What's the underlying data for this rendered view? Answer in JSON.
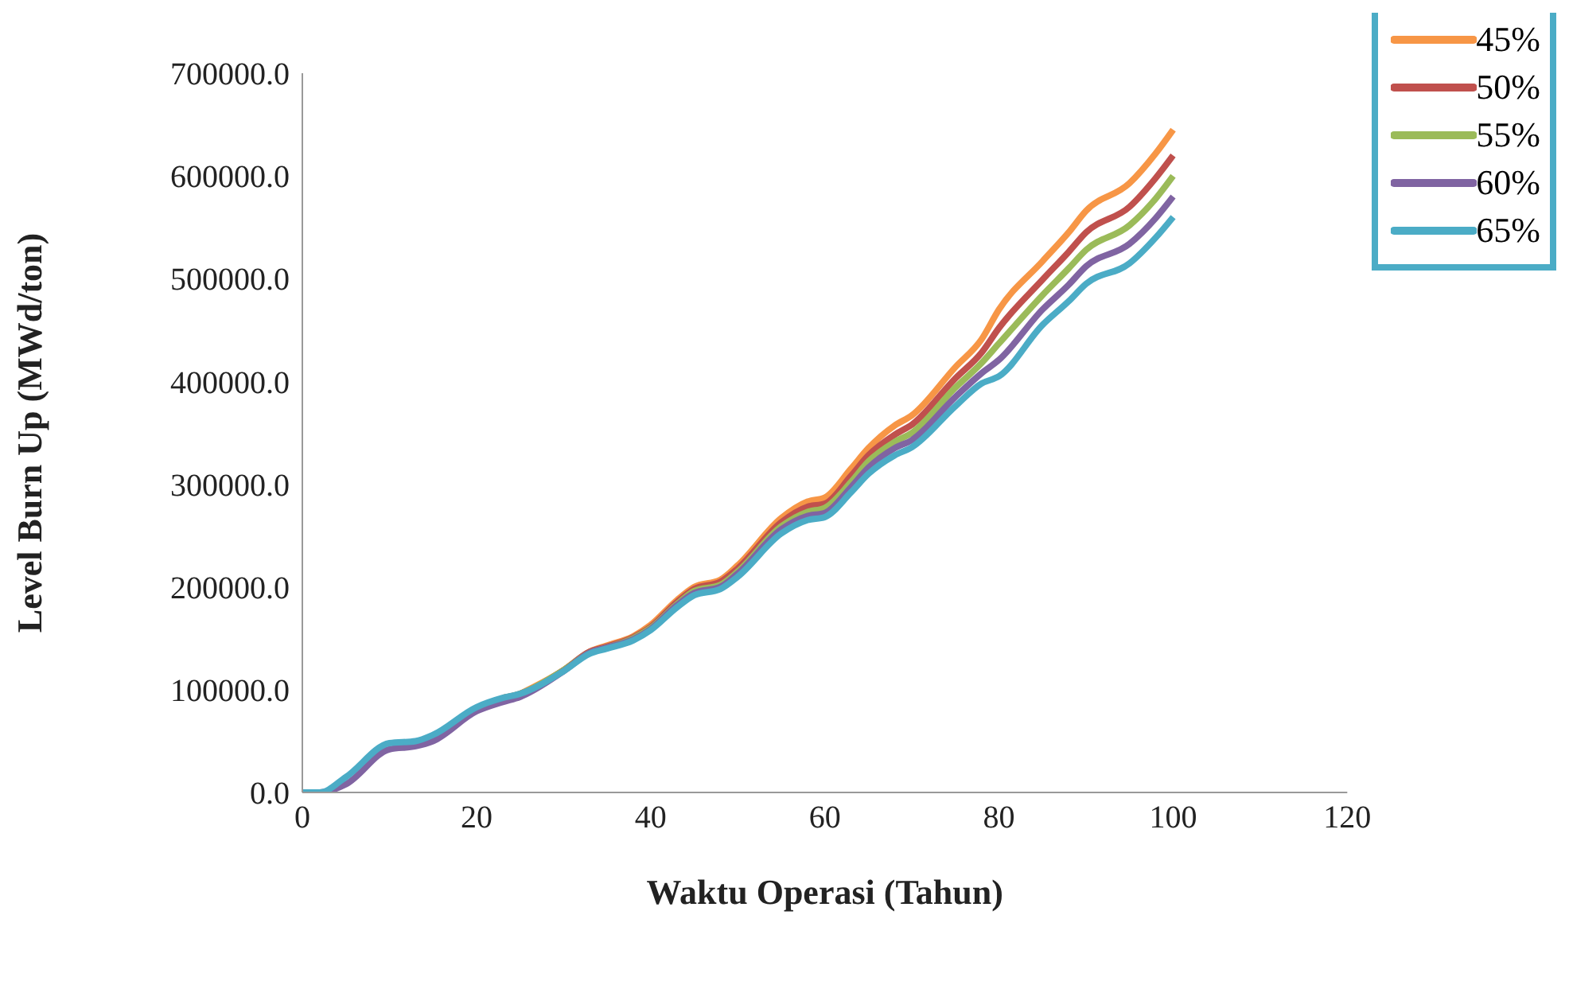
{
  "chart_data": {
    "type": "line",
    "xlabel": "Waktu Operasi (Tahun)",
    "ylabel": "Level Burn Up (MWd/ton)",
    "x": [
      0,
      2,
      5,
      10,
      13,
      15,
      20,
      23,
      25,
      30,
      33,
      35,
      38,
      40,
      43,
      45,
      48,
      50,
      55,
      58,
      60,
      63,
      65,
      68,
      70,
      75,
      78,
      80,
      85,
      88,
      90,
      95,
      98,
      100
    ],
    "xlim": [
      0,
      120
    ],
    "xticks": [
      0,
      20,
      40,
      60,
      80,
      100,
      120
    ],
    "ylim": [
      0,
      700000
    ],
    "yticks": [
      {
        "value": 0,
        "label": "0.0"
      },
      {
        "value": 100000,
        "label": "100000.0"
      },
      {
        "value": 200000,
        "label": "200000.0"
      },
      {
        "value": 300000,
        "label": "300000.0"
      },
      {
        "value": 400000,
        "label": "400000.0"
      },
      {
        "value": 500000,
        "label": "500000.0"
      },
      {
        "value": 600000,
        "label": "600000.0"
      },
      {
        "value": 700000,
        "label": "700000.0"
      }
    ],
    "grid": false,
    "legend": "top right",
    "marker": "none",
    "line_style": "solid",
    "series": [
      {
        "name": "45%",
        "color": "#f79646",
        "values": [
          null,
          null,
          null,
          null,
          null,
          null,
          null,
          null,
          96000,
          119000,
          137000,
          143000,
          152000,
          163000,
          187000,
          200000,
          207000,
          221000,
          267000,
          283000,
          287000,
          315000,
          335000,
          357000,
          367000,
          414000,
          441000,
          470000,
          517000,
          545000,
          566000,
          593000,
          622000,
          645000
        ]
      },
      {
        "name": "50%",
        "color": "#c0504d",
        "values": [
          null,
          null,
          null,
          null,
          null,
          null,
          null,
          92000,
          96000,
          119000,
          137000,
          142000,
          151000,
          161000,
          185000,
          198000,
          205000,
          218000,
          263000,
          278000,
          281000,
          308000,
          328000,
          348000,
          358000,
          403000,
          428000,
          452000,
          499000,
          526000,
          545000,
          570000,
          598000,
          620000
        ]
      },
      {
        "name": "55%",
        "color": "#9bbb59",
        "values": [
          null,
          null,
          null,
          null,
          null,
          null,
          null,
          92000,
          96000,
          119000,
          136000,
          141000,
          150000,
          160000,
          183000,
          196000,
          202000,
          215000,
          259000,
          273000,
          277000,
          302000,
          322000,
          341000,
          350000,
          394000,
          418000,
          437000,
          484000,
          510000,
          528000,
          552000,
          578000,
          600000
        ]
      },
      {
        "name": "60%",
        "color": "#8064a2",
        "values": [
          0,
          0,
          8000,
          42000,
          45000,
          50000,
          79000,
          88000,
          93000,
          118000,
          136000,
          141000,
          149000,
          159000,
          182000,
          194000,
          200000,
          213000,
          256000,
          269000,
          272000,
          297000,
          316000,
          335000,
          343000,
          385000,
          408000,
          421000,
          470000,
          494000,
          512000,
          534000,
          559000,
          580000
        ]
      },
      {
        "name": "65%",
        "color": "#4bacc6",
        "values": [
          0,
          0,
          15000,
          48000,
          50000,
          56000,
          83000,
          92000,
          96000,
          118000,
          135000,
          140000,
          148000,
          158000,
          180000,
          192000,
          198000,
          210000,
          252000,
          265000,
          268000,
          292000,
          310000,
          328000,
          336000,
          376000,
          398000,
          405000,
          455000,
          478000,
          495000,
          515000,
          540000,
          560000
        ]
      }
    ]
  }
}
